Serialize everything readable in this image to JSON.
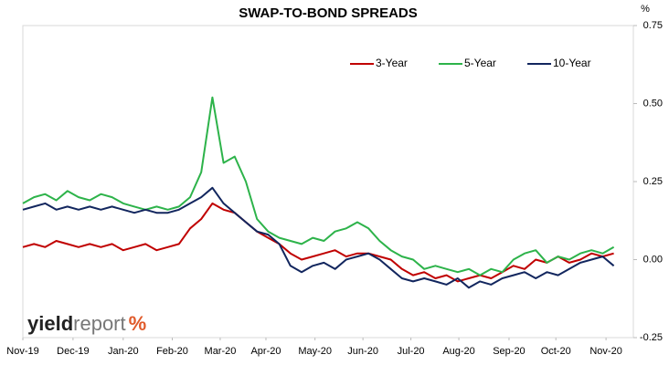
{
  "chart_data": {
    "type": "line",
    "title": "SWAP-TO-BOND SPREADS",
    "y_unit": "%",
    "x": [
      0,
      1,
      2,
      3,
      4,
      5,
      6,
      7,
      8,
      9,
      10,
      11,
      12,
      13,
      14,
      15,
      16,
      17,
      18,
      19,
      20,
      21,
      22,
      23,
      24,
      25,
      26,
      27,
      28,
      29,
      30,
      31,
      32,
      33,
      34,
      35,
      36,
      37,
      38,
      39,
      40,
      41,
      42,
      43,
      44,
      45,
      46,
      47,
      48,
      49,
      50,
      51,
      52,
      53
    ],
    "xlim": [
      0,
      54.75
    ],
    "xticks": [
      {
        "value": 0,
        "label": "Nov-19"
      },
      {
        "value": 4.5,
        "label": "Dec-19"
      },
      {
        "value": 9.0,
        "label": "Jan-20"
      },
      {
        "value": 13.4,
        "label": "Feb-20"
      },
      {
        "value": 17.7,
        "label": "Mar-20"
      },
      {
        "value": 21.8,
        "label": "Apr-20"
      },
      {
        "value": 26.2,
        "label": "May-20"
      },
      {
        "value": 30.5,
        "label": "Jun-20"
      },
      {
        "value": 34.8,
        "label": "Jul-20"
      },
      {
        "value": 39.1,
        "label": "Aug-20"
      },
      {
        "value": 43.6,
        "label": "Sep-20"
      },
      {
        "value": 47.8,
        "label": "Oct-20"
      },
      {
        "value": 52.3,
        "label": "Nov-20"
      }
    ],
    "ylim": [
      -0.25,
      0.75
    ],
    "yticks": [
      {
        "value": -0.25,
        "label": "-0.25"
      },
      {
        "value": 0,
        "label": "0.00"
      },
      {
        "value": 0.25,
        "label": "0.25"
      },
      {
        "value": 0.5,
        "label": "0.50"
      },
      {
        "value": 0.75,
        "label": "0.75"
      }
    ],
    "legend": "top",
    "series": [
      {
        "name": "3-Year",
        "color": "#c00000",
        "values": [
          0.04,
          0.05,
          0.04,
          0.06,
          0.05,
          0.04,
          0.05,
          0.04,
          0.05,
          0.03,
          0.04,
          0.05,
          0.03,
          0.04,
          0.05,
          0.1,
          0.13,
          0.18,
          0.16,
          0.15,
          0.12,
          0.09,
          0.07,
          0.05,
          0.02,
          0.0,
          0.01,
          0.02,
          0.03,
          0.01,
          0.02,
          0.02,
          0.01,
          0.0,
          -0.03,
          -0.05,
          -0.04,
          -0.06,
          -0.05,
          -0.07,
          -0.06,
          -0.05,
          -0.06,
          -0.04,
          -0.02,
          -0.03,
          0.0,
          -0.01,
          0.01,
          -0.01,
          0.0,
          0.02,
          0.01,
          0.02
        ]
      },
      {
        "name": "5-Year",
        "color": "#2db34a",
        "values": [
          0.18,
          0.2,
          0.21,
          0.19,
          0.22,
          0.2,
          0.19,
          0.21,
          0.2,
          0.18,
          0.17,
          0.16,
          0.17,
          0.16,
          0.17,
          0.2,
          0.28,
          0.52,
          0.31,
          0.33,
          0.25,
          0.13,
          0.09,
          0.07,
          0.06,
          0.05,
          0.07,
          0.06,
          0.09,
          0.1,
          0.12,
          0.1,
          0.06,
          0.03,
          0.01,
          0.0,
          -0.03,
          -0.02,
          -0.03,
          -0.04,
          -0.03,
          -0.05,
          -0.03,
          -0.04,
          0.0,
          0.02,
          0.03,
          -0.01,
          0.01,
          0.0,
          0.02,
          0.03,
          0.02,
          0.04
        ]
      },
      {
        "name": "10-Year",
        "color": "#12265e",
        "values": [
          0.16,
          0.17,
          0.18,
          0.16,
          0.17,
          0.16,
          0.17,
          0.16,
          0.17,
          0.16,
          0.15,
          0.16,
          0.15,
          0.15,
          0.16,
          0.18,
          0.2,
          0.23,
          0.18,
          0.15,
          0.12,
          0.09,
          0.08,
          0.05,
          -0.02,
          -0.04,
          -0.02,
          -0.01,
          -0.03,
          0.0,
          0.01,
          0.02,
          0.0,
          -0.03,
          -0.06,
          -0.07,
          -0.06,
          -0.07,
          -0.08,
          -0.06,
          -0.09,
          -0.07,
          -0.08,
          -0.06,
          -0.05,
          -0.04,
          -0.06,
          -0.04,
          -0.05,
          -0.03,
          -0.01,
          0.0,
          0.01,
          -0.02
        ]
      }
    ],
    "logo": [
      "yield",
      "report",
      "%"
    ]
  }
}
